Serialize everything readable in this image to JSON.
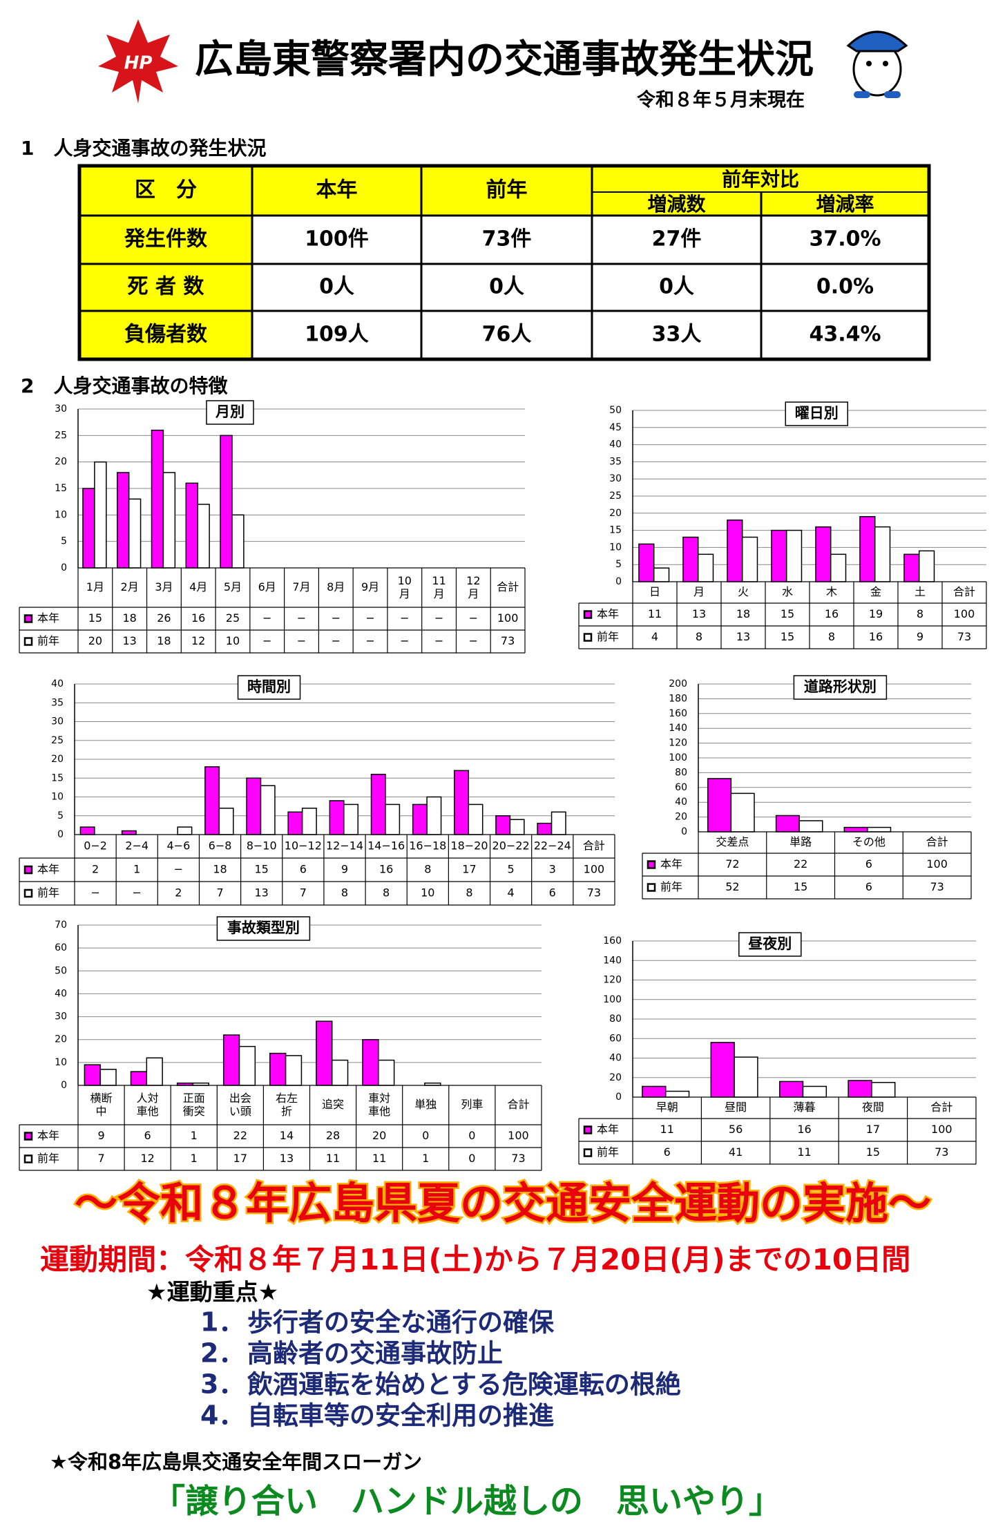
{
  "header": {
    "logo_text": "HP",
    "title": "広島東警察署内の交通事故発生状況",
    "date": "令和８年５月末現在"
  },
  "section1": {
    "heading": "1　人身交通事故の発生状況",
    "table": {
      "columns": [
        "区　分",
        "本年",
        "前年"
      ],
      "group": "前年対比",
      "subcolumns": [
        "増減数",
        "増減率"
      ],
      "rows": [
        [
          "発生件数",
          "100件",
          "73件",
          "27件",
          "37.0%"
        ],
        [
          "死 者 数",
          "0人",
          "0人",
          "0人",
          "0.0%"
        ],
        [
          "負傷者数",
          "109人",
          "76人",
          "33人",
          "43.4%"
        ]
      ]
    }
  },
  "section2": {
    "heading": "2　人身交通事故の特徴"
  },
  "chart_data": [
    {
      "type": "bar",
      "title": "月別",
      "categories": [
        "1月",
        "2月",
        "3月",
        "4月",
        "5月",
        "6月",
        "7月",
        "8月",
        "9月",
        "10月",
        "11月",
        "12月"
      ],
      "total_label": "合計",
      "series": [
        {
          "name": "本年",
          "color": "#ff00ff",
          "values": [
            15,
            18,
            26,
            16,
            25,
            null,
            null,
            null,
            null,
            null,
            null,
            null
          ],
          "value_labels": [
            "15",
            "18",
            "26",
            "16",
            "25",
            "−",
            "−",
            "−",
            "−",
            "−",
            "−",
            "−"
          ],
          "total": 100
        },
        {
          "name": "前年",
          "color": "#ffffff",
          "values": [
            20,
            13,
            18,
            12,
            10,
            null,
            null,
            null,
            null,
            null,
            null,
            null
          ],
          "value_labels": [
            "20",
            "13",
            "18",
            "12",
            "10",
            "−",
            "−",
            "−",
            "−",
            "−",
            "−",
            "−"
          ],
          "total": 73
        }
      ],
      "ylim": [
        0,
        30
      ],
      "yticks": [
        0,
        5,
        10,
        15,
        20,
        25,
        30
      ],
      "grid": true
    },
    {
      "type": "bar",
      "title": "曜日別",
      "categories": [
        "日",
        "月",
        "火",
        "水",
        "木",
        "金",
        "土"
      ],
      "total_label": "合計",
      "series": [
        {
          "name": "本年",
          "color": "#ff00ff",
          "values": [
            11,
            13,
            18,
            15,
            16,
            19,
            8
          ],
          "total": 100
        },
        {
          "name": "前年",
          "color": "#ffffff",
          "values": [
            4,
            8,
            13,
            15,
            8,
            16,
            9
          ],
          "total": 73
        }
      ],
      "ylim": [
        0,
        50
      ],
      "yticks": [
        0,
        5,
        10,
        15,
        20,
        25,
        30,
        35,
        40,
        45,
        50
      ],
      "grid": true
    },
    {
      "type": "bar",
      "title": "時間別",
      "categories": [
        "0−2",
        "2−4",
        "4−6",
        "6−8",
        "8−10",
        "10−12",
        "12−14",
        "14−16",
        "16−18",
        "18−20",
        "20−22",
        "22−24"
      ],
      "total_label": "合計",
      "series": [
        {
          "name": "本年",
          "color": "#ff00ff",
          "values": [
            2,
            1,
            null,
            18,
            15,
            6,
            9,
            16,
            8,
            17,
            5,
            3
          ],
          "value_labels": [
            "2",
            "1",
            "−",
            "18",
            "15",
            "6",
            "9",
            "16",
            "8",
            "17",
            "5",
            "3"
          ],
          "total": 100
        },
        {
          "name": "前年",
          "color": "#ffffff",
          "values": [
            null,
            null,
            2,
            7,
            13,
            7,
            8,
            8,
            10,
            8,
            4,
            6
          ],
          "value_labels": [
            "−",
            "−",
            "2",
            "7",
            "13",
            "7",
            "8",
            "8",
            "10",
            "8",
            "4",
            "6"
          ],
          "total": 73
        }
      ],
      "ylim": [
        0,
        40
      ],
      "yticks": [
        0,
        5,
        10,
        15,
        20,
        25,
        30,
        35,
        40
      ],
      "grid": true
    },
    {
      "type": "bar",
      "title": "道路形状別",
      "categories": [
        "交差点",
        "単路",
        "その他"
      ],
      "total_label": "合計",
      "series": [
        {
          "name": "本年",
          "color": "#ff00ff",
          "values": [
            72,
            22,
            6
          ],
          "total": 100
        },
        {
          "name": "前年",
          "color": "#ffffff",
          "values": [
            52,
            15,
            6
          ],
          "total": 73
        }
      ],
      "ylim": [
        0,
        200
      ],
      "yticks": [
        0,
        20,
        40,
        60,
        80,
        100,
        120,
        140,
        160,
        180,
        200
      ],
      "grid": true
    },
    {
      "type": "bar",
      "title": "事故類型別",
      "categories": [
        "横断中",
        "人対車他",
        "正面衝突",
        "出会い頭",
        "右左折",
        "追突",
        "車対車他",
        "単独",
        "列車"
      ],
      "total_label": "合計",
      "series": [
        {
          "name": "本年",
          "color": "#ff00ff",
          "values": [
            9,
            6,
            1,
            22,
            14,
            28,
            20,
            0,
            0
          ],
          "total": 100
        },
        {
          "name": "前年",
          "color": "#ffffff",
          "values": [
            7,
            12,
            1,
            17,
            13,
            11,
            11,
            1,
            0
          ],
          "total": 73
        }
      ],
      "ylim": [
        0,
        70
      ],
      "yticks": [
        0,
        10,
        20,
        30,
        40,
        50,
        60,
        70
      ],
      "grid": true
    },
    {
      "type": "bar",
      "title": "昼夜別",
      "categories": [
        "早朝",
        "昼間",
        "薄暮",
        "夜間"
      ],
      "total_label": "合計",
      "series": [
        {
          "name": "本年",
          "color": "#ff00ff",
          "values": [
            11,
            56,
            16,
            17
          ],
          "total": 100
        },
        {
          "name": "前年",
          "color": "#ffffff",
          "values": [
            6,
            41,
            11,
            15
          ],
          "total": 73
        }
      ],
      "ylim": [
        0,
        160
      ],
      "yticks": [
        0,
        20,
        40,
        60,
        80,
        100,
        120,
        140,
        160
      ],
      "grid": true
    }
  ],
  "campaign": {
    "title": "～令和８年広島県夏の交通安全運動の実施～",
    "period": "運動期間：令和８年７月11日(土)から７月20日(月)までの10日間",
    "focus_heading": "★運動重点★",
    "items": [
      {
        "number": "1．",
        "text": "歩行者の安全な通行の確保"
      },
      {
        "number": "2．",
        "text": "高齢者の交通事故防止"
      },
      {
        "number": "3．",
        "text": "飲酒運転を始めとする危険運転の根絶"
      },
      {
        "number": "4．",
        "text": "自転車等の安全利用の推進"
      }
    ],
    "slogan_heading": "★令和8年広島県交通安全年間スローガン",
    "slogan": "「譲り合い　ハンドル越しの　思いやり」"
  }
}
